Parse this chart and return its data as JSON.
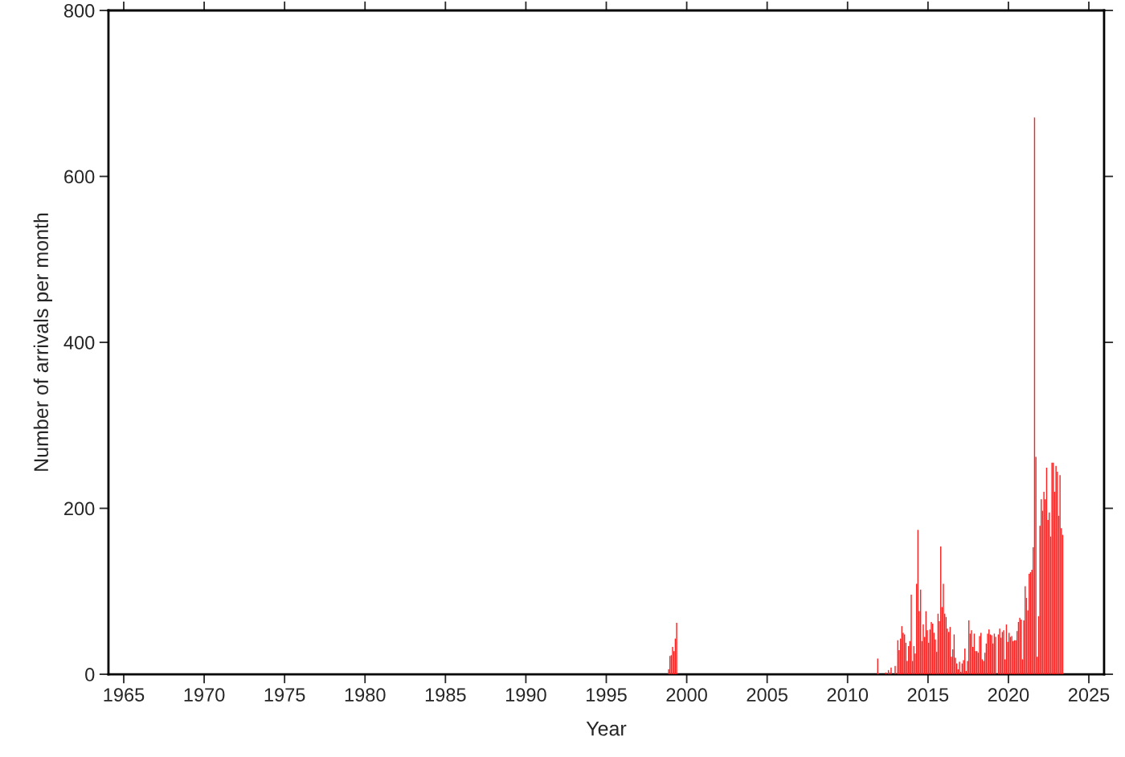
{
  "chart_data": {
    "type": "bar",
    "xlabel": "Year",
    "ylabel": "Number of arrivals per month",
    "color": "#ff2020",
    "x": [
      "1998-11",
      "1998-12",
      "1999-01",
      "1999-02",
      "1999-03",
      "1999-04",
      "1999-05",
      "2011-11",
      "2012-05",
      "2012-07",
      "2012-08",
      "2012-09",
      "2012-12",
      "2013-02",
      "2013-03",
      "2013-04",
      "2013-05",
      "2013-06",
      "2013-07",
      "2013-08",
      "2013-09",
      "2013-10",
      "2013-11",
      "2013-12",
      "2014-01",
      "2014-02",
      "2014-03",
      "2014-04",
      "2014-05",
      "2014-06",
      "2014-07",
      "2014-08",
      "2014-09",
      "2014-10",
      "2014-11",
      "2014-12",
      "2015-01",
      "2015-02",
      "2015-03",
      "2015-04",
      "2015-05",
      "2015-06",
      "2015-07",
      "2015-08",
      "2015-09",
      "2015-10",
      "2015-11",
      "2015-12",
      "2016-01",
      "2016-02",
      "2016-03",
      "2016-04",
      "2016-05",
      "2016-06",
      "2016-07",
      "2016-08",
      "2016-09",
      "2016-10",
      "2016-11",
      "2016-12",
      "2017-01",
      "2017-02",
      "2017-03",
      "2017-04",
      "2017-05",
      "2017-06",
      "2017-07",
      "2017-08",
      "2017-09",
      "2017-10",
      "2017-11",
      "2017-12",
      "2018-01",
      "2018-02",
      "2018-03",
      "2018-04",
      "2018-05",
      "2018-06",
      "2018-07",
      "2018-08",
      "2018-09",
      "2018-10",
      "2018-11",
      "2018-12",
      "2019-01",
      "2019-02",
      "2019-03",
      "2019-05",
      "2019-06",
      "2019-07",
      "2019-08",
      "2019-09",
      "2019-10",
      "2019-11",
      "2019-12",
      "2020-01",
      "2020-02",
      "2020-03",
      "2020-04",
      "2020-05",
      "2020-06",
      "2020-07",
      "2020-08",
      "2020-09",
      "2020-10",
      "2020-11",
      "2020-12",
      "2021-01",
      "2021-02",
      "2021-03",
      "2021-04",
      "2021-05",
      "2021-06",
      "2021-07",
      "2021-08",
      "2021-09",
      "2021-10",
      "2021-11",
      "2021-12",
      "2022-01",
      "2022-02",
      "2022-03",
      "2022-04",
      "2022-05",
      "2022-06",
      "2022-07",
      "2022-08",
      "2022-09",
      "2022-10",
      "2022-11",
      "2022-12",
      "2023-01",
      "2023-02",
      "2023-03",
      "2023-04",
      "2023-05"
    ],
    "values": [
      6,
      22,
      23,
      33,
      28,
      43,
      62,
      19,
      2,
      5,
      2,
      8,
      10,
      41,
      29,
      43,
      58,
      50,
      48,
      38,
      16,
      34,
      40,
      96,
      16,
      34,
      25,
      109,
      174,
      76,
      102,
      40,
      60,
      45,
      76,
      53,
      38,
      54,
      63,
      61,
      50,
      42,
      27,
      73,
      64,
      154,
      81,
      109,
      73,
      69,
      55,
      51,
      57,
      21,
      30,
      48,
      20,
      13,
      6,
      15,
      3,
      13,
      17,
      31,
      4,
      16,
      65,
      49,
      53,
      33,
      49,
      28,
      28,
      26,
      46,
      50,
      18,
      16,
      26,
      37,
      49,
      54,
      48,
      47,
      37,
      49,
      45,
      48,
      55,
      44,
      51,
      53,
      18,
      60,
      39,
      50,
      45,
      46,
      40,
      41,
      41,
      52,
      63,
      68,
      66,
      18,
      65,
      106,
      92,
      77,
      121,
      123,
      126,
      153,
      671,
      262,
      21,
      70,
      179,
      211,
      197,
      220,
      211,
      249,
      186,
      195,
      166,
      255,
      255,
      220,
      251,
      244,
      191,
      240,
      176,
      168
    ],
    "xlim": [
      "1964-01-19",
      "2025-12-13"
    ],
    "xticks": [
      "1965",
      "1970",
      "1975",
      "1980",
      "1985",
      "1990",
      "1995",
      "2000",
      "2005",
      "2010",
      "2015",
      "2020",
      "2025"
    ],
    "ylim": [
      0,
      800
    ],
    "yticks": [
      0,
      200,
      400,
      600,
      800
    ],
    "grid": false
  }
}
